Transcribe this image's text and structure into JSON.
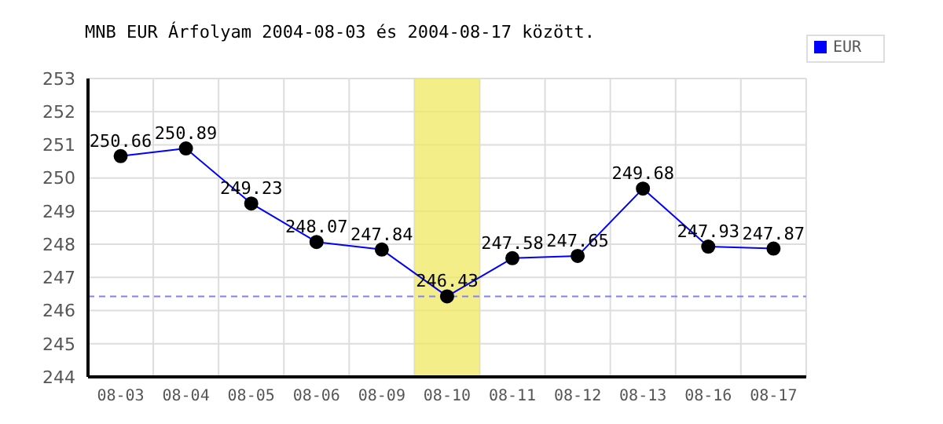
{
  "chart_data": {
    "type": "line",
    "title": "MNB EUR Árfolyam 2004-08-03 és 2004-08-17 között.",
    "categories": [
      "08-03",
      "08-04",
      "08-05",
      "08-06",
      "08-09",
      "08-10",
      "08-11",
      "08-12",
      "08-13",
      "08-16",
      "08-17"
    ],
    "series": [
      {
        "name": "EUR",
        "color": "#0000ff",
        "values": [
          250.66,
          250.89,
          249.23,
          248.07,
          247.84,
          246.43,
          247.58,
          247.65,
          249.68,
          247.93,
          247.87
        ]
      }
    ],
    "ylim": [
      244,
      253
    ],
    "yticks": [
      244,
      245,
      246,
      247,
      248,
      249,
      250,
      251,
      252,
      253
    ],
    "ref_lines": [
      {
        "axis": "y",
        "value": 246.43,
        "color": "#8080ff",
        "line_style": "dashed"
      }
    ],
    "bands": [
      {
        "axis": "x",
        "from": "08-10",
        "to": "08-10",
        "color": "#f0e860"
      }
    ],
    "grid": true,
    "legend": "top right",
    "marker": "circle",
    "line_style": "solid",
    "data_labels": true
  }
}
